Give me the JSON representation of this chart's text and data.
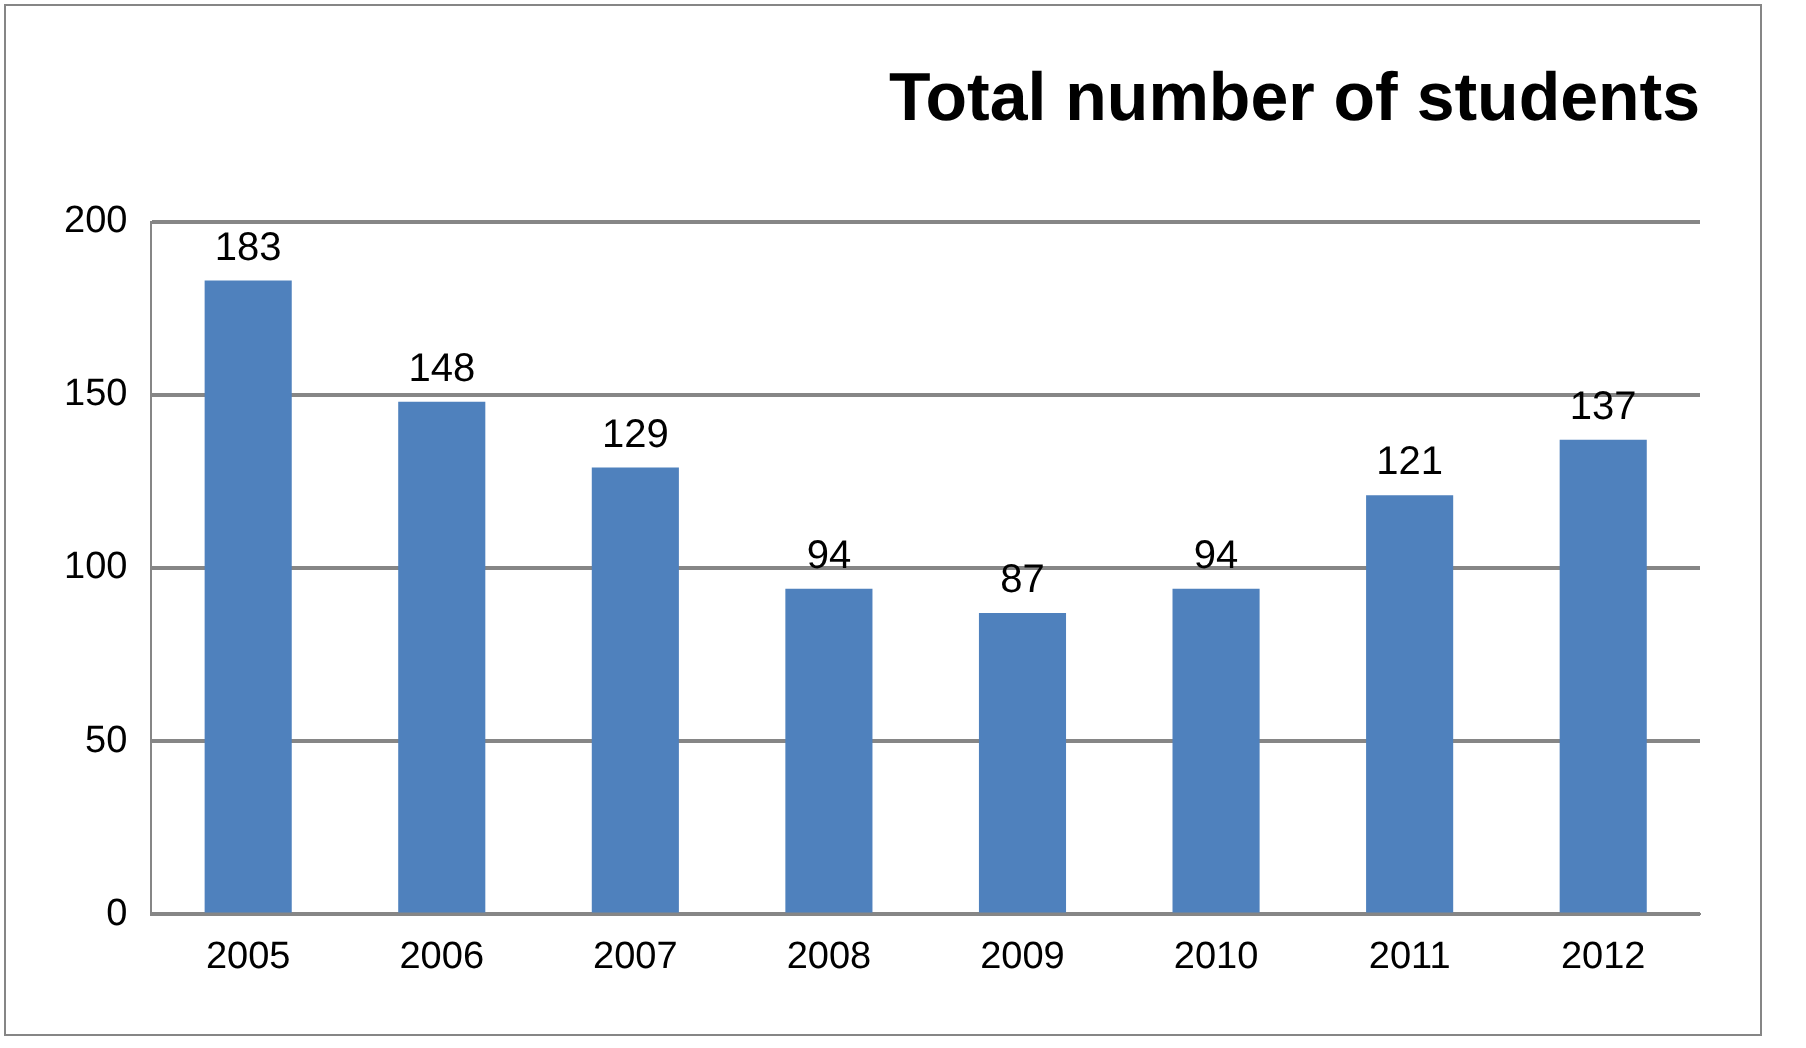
{
  "chart_data": {
    "type": "bar",
    "title": "Total number of students",
    "categories": [
      "2005",
      "2006",
      "2007",
      "2008",
      "2009",
      "2010",
      "2011",
      "2012"
    ],
    "values": [
      183,
      148,
      129,
      94,
      87,
      94,
      121,
      137
    ],
    "color": "#4f81bd",
    "ylim": [
      0,
      200
    ],
    "yticks": [
      0,
      50,
      100,
      150,
      200
    ],
    "grid": "y",
    "data_labels": true,
    "legend": false
  }
}
